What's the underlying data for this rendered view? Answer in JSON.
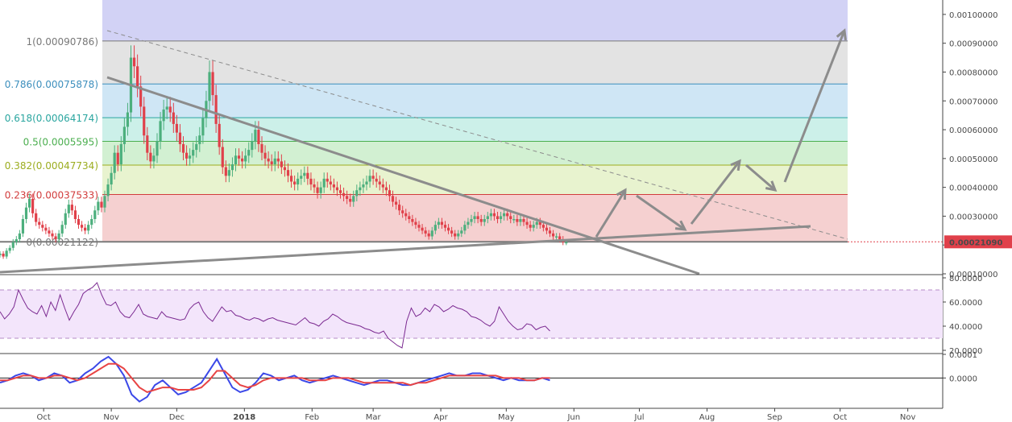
{
  "chart_data": [
    {
      "type": "candlestick",
      "panel": "price",
      "ylim": [
        0.0001,
        0.00105
      ],
      "y_ticks": [
        "0.00100000",
        "0.00090000",
        "0.00080000",
        "0.00070000",
        "0.00060000",
        "0.00050000",
        "0.00040000",
        "0.00030000",
        "0.00020000",
        "0.00010000"
      ],
      "y_tick_values": [
        0.001,
        0.0009,
        0.0008,
        0.0007,
        0.0006,
        0.0005,
        0.0004,
        0.0003,
        0.0002,
        0.0001
      ],
      "last_price_label": "0.00021090",
      "last_price": 0.0002109,
      "x_ticks": [
        "Oct",
        "Nov",
        "Dec",
        "2018",
        "Feb",
        "Mar",
        "Apr",
        "May",
        "Jun",
        "Jul",
        "Aug",
        "Sep",
        "Oct",
        "Nov"
      ],
      "x_tick_days": [
        0,
        31,
        61,
        92,
        123,
        151,
        182,
        212,
        243,
        273,
        304,
        335,
        365,
        396
      ],
      "xlim_days": [
        -20,
        412
      ],
      "fib_levels": [
        {
          "ratio": 1,
          "label": "1(0.00090786)",
          "value": 0.00090786,
          "color": "#787878",
          "fill": "#e3e3e3"
        },
        {
          "ratio": 0.786,
          "label": "0.786(0.00075878)",
          "value": 0.00075878,
          "color": "#3d8fbd",
          "fill": "#cfe6f5"
        },
        {
          "ratio": 0.618,
          "label": "0.618(0.00064174)",
          "value": 0.00064174,
          "color": "#2ba6a0",
          "fill": "#ccf0e9"
        },
        {
          "ratio": 0.5,
          "label": "0.5(0.0005595)",
          "value": 0.0005595,
          "color": "#4caf50",
          "fill": "#d2f0d2"
        },
        {
          "ratio": 0.382,
          "label": "0.382(0.00047734)",
          "value": 0.00047734,
          "color": "#9cad1f",
          "fill": "#e8f3cf"
        },
        {
          "ratio": 0.236,
          "label": "0.236(0.00037533)",
          "value": 0.00037533,
          "color": "#d23c3c",
          "fill": "#f5d0d0"
        },
        {
          "ratio": 0,
          "label": "0(0.00021122)",
          "value": 0.00021122,
          "color": "#7a7a7a",
          "fill": "#f5d0d0"
        }
      ],
      "ext_fill": "#d2d2f5",
      "candles_daily_close": [
        0.00017,
        0.00016,
        0.00018,
        0.00019,
        0.00021,
        0.00022,
        0.00024,
        0.00029,
        0.00033,
        0.00036,
        0.00031,
        0.00028,
        0.00027,
        0.00026,
        0.00025,
        0.00024,
        0.00023,
        0.00022,
        0.00024,
        0.00027,
        0.00031,
        0.00034,
        0.00032,
        0.00029,
        0.00027,
        0.00026,
        0.00025,
        0.00027,
        0.00029,
        0.00032,
        0.00035,
        0.00033,
        0.00037,
        0.00041,
        0.00045,
        0.00052,
        0.00048,
        0.00055,
        0.00061,
        0.00066,
        0.00085,
        0.00082,
        0.00075,
        0.00068,
        0.00058,
        0.00052,
        0.00049,
        0.00051,
        0.00056,
        0.00063,
        0.00067,
        0.00068,
        0.00066,
        0.00062,
        0.00059,
        0.00055,
        0.00052,
        0.0005,
        0.00051,
        0.00053,
        0.00055,
        0.00058,
        0.00064,
        0.0007,
        0.0008,
        0.00072,
        0.00062,
        0.00054,
        0.00047,
        0.00044,
        0.00046,
        0.00048,
        0.00051,
        0.0005,
        0.00049,
        0.00051,
        0.00053,
        0.00056,
        0.0006,
        0.00055,
        0.00052,
        0.0005,
        0.00049,
        0.00048,
        0.0005,
        0.00049,
        0.00047,
        0.00046,
        0.00044,
        0.00042,
        0.00041,
        0.00043,
        0.00044,
        0.00045,
        0.00043,
        0.00041,
        0.0004,
        0.00038,
        0.0004,
        0.00043,
        0.00042,
        0.00041,
        0.0004,
        0.00039,
        0.00038,
        0.00037,
        0.00036,
        0.00035,
        0.00037,
        0.00039,
        0.0004,
        0.00041,
        0.00042,
        0.00044,
        0.00043,
        0.00042,
        0.00041,
        0.0004,
        0.00039,
        0.00037,
        0.00035,
        0.00034,
        0.00032,
        0.00031,
        0.0003,
        0.00029,
        0.00028,
        0.00027,
        0.00026,
        0.00025,
        0.00024,
        0.00023,
        0.00025,
        0.00027,
        0.00028,
        0.00027,
        0.00026,
        0.00025,
        0.00024,
        0.00023,
        0.00024,
        0.00025,
        0.00027,
        0.00028,
        0.00029,
        0.0003,
        0.00029,
        0.00028,
        0.00029,
        0.0003,
        0.00031,
        0.0003,
        0.00029,
        0.0003,
        0.00031,
        0.0003,
        0.00029,
        0.00029,
        0.00028,
        0.00029,
        0.00028,
        0.00027,
        0.00026,
        0.00027,
        0.00028,
        0.00027,
        0.00026,
        0.00025,
        0.00024,
        0.00023,
        0.00023,
        0.00022,
        0.00021,
        0.00021
      ],
      "candles_start_day": -20,
      "candles_step_days": 1.5,
      "trendlines_desc": "descending line from Nov peak through Jun; rising support line from Sep lows; dashed line from 1.0 level top to far right; projected zigzag arrows from Jun to Oct"
    },
    {
      "type": "line",
      "panel": "rsi",
      "ylim": [
        18,
        82
      ],
      "y_ticks": [
        "80.0000",
        "60.0000",
        "40.0000",
        "20.0000"
      ],
      "y_tick_values": [
        80,
        60,
        40,
        20
      ],
      "band": [
        30,
        70
      ],
      "band_fill": "#f3e5fb",
      "line_color": "#7b2a91",
      "values": [
        52,
        46,
        50,
        56,
        70,
        62,
        55,
        52,
        50,
        57,
        48,
        60,
        53,
        66,
        55,
        45,
        52,
        58,
        67,
        70,
        72,
        76,
        66,
        58,
        57,
        60,
        52,
        48,
        47,
        52,
        58,
        50,
        48,
        47,
        46,
        52,
        48,
        47,
        46,
        45,
        46,
        54,
        58,
        60,
        52,
        47,
        44,
        50,
        56,
        52,
        53,
        49,
        48,
        46,
        45,
        47,
        46,
        44,
        46,
        47,
        45,
        44,
        43,
        42,
        41,
        44,
        47,
        43,
        42,
        40,
        44,
        46,
        50,
        48,
        45,
        43,
        42,
        41,
        40,
        38,
        37,
        35,
        34,
        36,
        30,
        27,
        24,
        22,
        44,
        55,
        48,
        50,
        55,
        52,
        58,
        56,
        52,
        54,
        57,
        55,
        54,
        52,
        48,
        47,
        45,
        42,
        40,
        44,
        56,
        50,
        44,
        40,
        37,
        38,
        42,
        41,
        37,
        39,
        40,
        36
      ]
    },
    {
      "type": "line",
      "panel": "macd",
      "ylim": [
        -0.000125,
        0.0001
      ],
      "y_ticks": [
        "0.0001",
        "0.0000"
      ],
      "y_tick_values": [
        0.0001,
        0
      ],
      "series": [
        {
          "name": "",
          "color": "#3b48e8",
          "values": [
            -2e-05,
            -1e-05,
            1e-05,
            2e-05,
            1e-05,
            -1e-05,
            0.0,
            2e-05,
            1e-05,
            -2e-05,
            -1e-05,
            2e-05,
            4e-05,
            7e-05,
            9e-05,
            6e-05,
            1e-05,
            -7e-05,
            -0.0001,
            -8e-05,
            -3e-05,
            -1e-05,
            -4e-05,
            -7e-05,
            -6e-05,
            -4e-05,
            -2e-05,
            3e-05,
            8e-05,
            2e-05,
            -4e-05,
            -6e-05,
            -5e-05,
            -2e-05,
            2e-05,
            1e-05,
            -1e-05,
            0.0,
            1e-05,
            -1e-05,
            -2e-05,
            -1e-05,
            0.0,
            1e-05,
            0.0,
            -1e-05,
            -2e-05,
            -3e-05,
            -2e-05,
            -1e-05,
            -1e-05,
            -2e-05,
            -3e-05,
            -3e-05,
            -2e-05,
            -1e-05,
            0.0,
            1e-05,
            2e-05,
            1e-05,
            1e-05,
            2e-05,
            2e-05,
            1e-05,
            0.0,
            -1e-05,
            0.0,
            -1e-05,
            -1e-05,
            -1e-05,
            0.0,
            -1e-05
          ]
        },
        {
          "name": "",
          "color": "#e84444",
          "values": [
            -1e-05,
            -1e-05,
            0.0,
            1e-05,
            1e-05,
            0.0,
            0.0,
            1e-05,
            1e-05,
            0.0,
            -1e-05,
            0.0,
            2e-05,
            4e-05,
            6e-05,
            6e-05,
            4e-05,
            0.0,
            -4e-05,
            -6e-05,
            -5e-05,
            -4e-05,
            -4e-05,
            -5e-05,
            -5e-05,
            -5e-05,
            -4e-05,
            -1e-05,
            3e-05,
            3e-05,
            0.0,
            -3e-05,
            -4e-05,
            -3e-05,
            -1e-05,
            0.0,
            0.0,
            0.0,
            0.0,
            0.0,
            -1e-05,
            -1e-05,
            -1e-05,
            0.0,
            0.0,
            0.0,
            -1e-05,
            -2e-05,
            -2e-05,
            -2e-05,
            -2e-05,
            -2e-05,
            -2e-05,
            -3e-05,
            -2e-05,
            -2e-05,
            -1e-05,
            0.0,
            1e-05,
            1e-05,
            1e-05,
            1e-05,
            1e-05,
            1e-05,
            1e-05,
            0.0,
            0.0,
            0.0,
            -1e-05,
            -1e-05,
            0.0,
            0.0
          ]
        }
      ]
    }
  ]
}
